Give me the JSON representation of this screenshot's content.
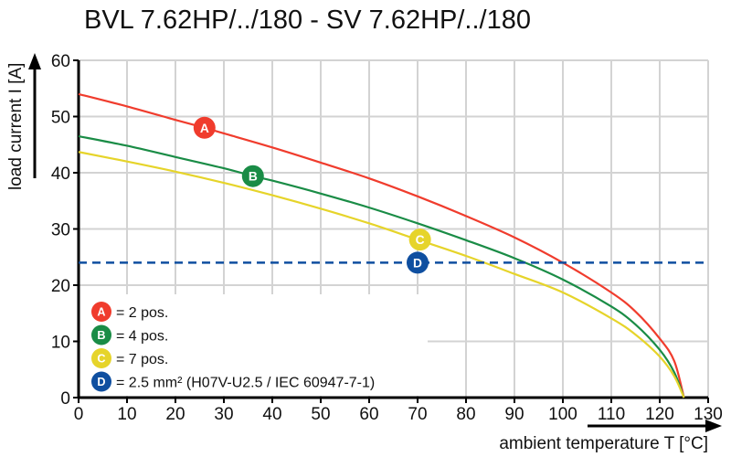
{
  "chart_data": {
    "type": "line",
    "title": "BVL 7.62HP/../180 - SV 7.62HP/../180",
    "xlabel": "ambient temperature T [°C]",
    "ylabel": "load current I [A]",
    "xlim": [
      0,
      130
    ],
    "ylim": [
      0,
      60
    ],
    "xticks": [
      0,
      10,
      20,
      30,
      40,
      50,
      60,
      70,
      80,
      90,
      100,
      110,
      120,
      130
    ],
    "yticks": [
      0,
      10,
      20,
      30,
      40,
      50,
      60
    ],
    "grid": true,
    "legend_placement": "bottom-left",
    "series": [
      {
        "marker": "A",
        "name": "= 2 pos.",
        "color": "#f03c2d",
        "x": [
          0,
          10,
          20,
          26,
          30,
          40,
          50,
          60,
          70,
          80,
          90,
          100,
          110,
          115,
          120,
          123,
          125
        ],
        "y": [
          54,
          51.8,
          49.4,
          48,
          47,
          44.5,
          41.8,
          39,
          35.8,
          32.3,
          28.5,
          24,
          18.7,
          15.3,
          10.5,
          6.5,
          0
        ],
        "marker_at": [
          26,
          48
        ]
      },
      {
        "marker": "B",
        "name": "= 4 pos.",
        "color": "#1a8c46",
        "x": [
          0,
          10,
          20,
          30,
          36,
          40,
          50,
          60,
          70,
          80,
          90,
          100,
          110,
          115,
          120,
          123,
          125
        ],
        "y": [
          46.5,
          44.8,
          42.8,
          40.8,
          39.4,
          38.6,
          36.3,
          33.8,
          31,
          28,
          24.8,
          21,
          16.2,
          13,
          8.5,
          4.5,
          0
        ],
        "marker_at": [
          36,
          39.4
        ]
      },
      {
        "marker": "C",
        "name": "= 7 pos.",
        "color": "#e6d42a",
        "x": [
          0,
          10,
          20,
          30,
          40,
          50,
          60,
          70,
          80,
          90,
          100,
          110,
          115,
          120,
          123,
          125
        ],
        "y": [
          43.7,
          42,
          40.2,
          38.2,
          36,
          33.6,
          31,
          28.1,
          25.2,
          22,
          18.7,
          14.1,
          11.2,
          7.3,
          3.8,
          0
        ],
        "marker_at": [
          70.5,
          28.1
        ]
      },
      {
        "marker": "D",
        "name": "= 2.5 mm² (H07V-U2.5 / IEC 60947-7-1)",
        "color": "#0f4fa0",
        "style": "dashed",
        "x": [
          0,
          130
        ],
        "y": [
          24,
          24
        ],
        "marker_at": [
          70,
          24
        ]
      }
    ]
  }
}
